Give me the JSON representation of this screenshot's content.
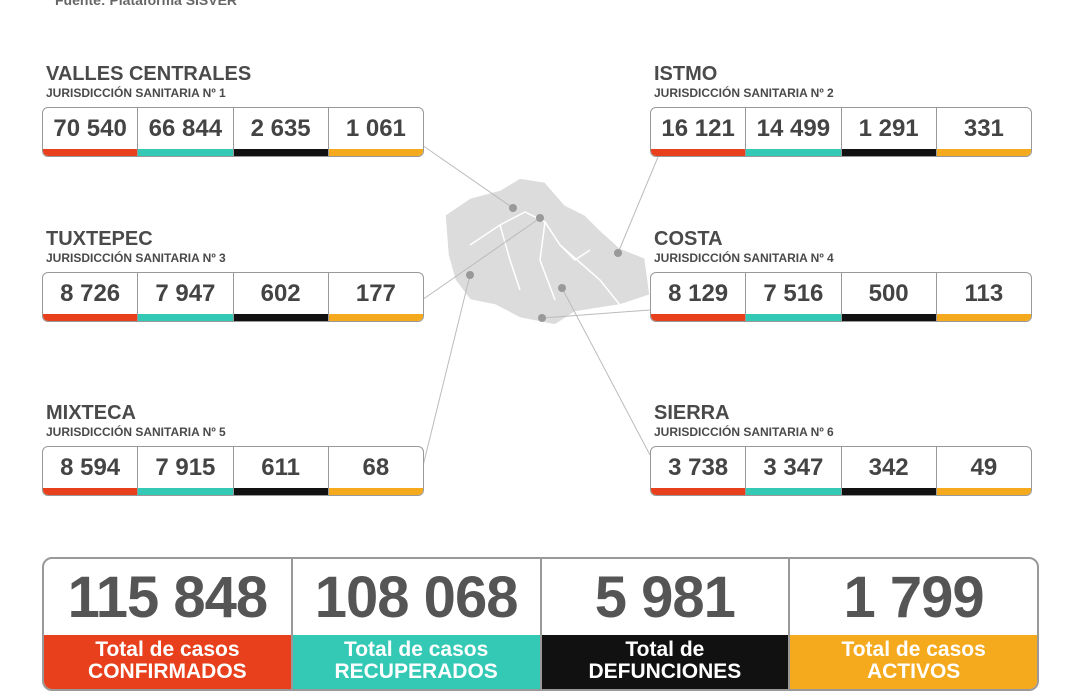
{
  "source": "Fuente: Plataforma SISVER",
  "regions": [
    {
      "name": "VALLES CENTRALES",
      "jurisdiction": "JURISDICCIÓN SANITARIA Nº 1",
      "values": [
        "70 540",
        "66 844",
        "2 635",
        "1 061"
      ]
    },
    {
      "name": "ISTMO",
      "jurisdiction": "JURISDICCIÓN SANITARIA Nº 2",
      "values": [
        "16 121",
        "14 499",
        "1 291",
        "331"
      ]
    },
    {
      "name": "TUXTEPEC",
      "jurisdiction": "JURISDICCIÓN SANITARIA Nº 3",
      "values": [
        "8 726",
        "7 947",
        "602",
        "177"
      ]
    },
    {
      "name": "COSTA",
      "jurisdiction": "JURISDICCIÓN SANITARIA Nº 4",
      "values": [
        "8 129",
        "7 516",
        "500",
        "113"
      ]
    },
    {
      "name": "MIXTECA",
      "jurisdiction": "JURISDICCIÓN SANITARIA Nº 5",
      "values": [
        "8 594",
        "7 915",
        "611",
        "68"
      ]
    },
    {
      "name": "SIERRA",
      "jurisdiction": "JURISDICCIÓN SANITARIA Nº 6",
      "values": [
        "3 738",
        "3 347",
        "342",
        "49"
      ]
    }
  ],
  "totals": [
    {
      "value": "115 848",
      "label": [
        "Total de casos",
        "CONFIRMADOS"
      ]
    },
    {
      "value": "108 068",
      "label": [
        "Total de casos",
        "RECUPERADOS"
      ]
    },
    {
      "value": "5 981",
      "label": [
        "Total de",
        "DEFUNCIONES"
      ]
    },
    {
      "value": "1 799",
      "label": [
        "Total de casos",
        "ACTIVOS"
      ]
    }
  ]
}
